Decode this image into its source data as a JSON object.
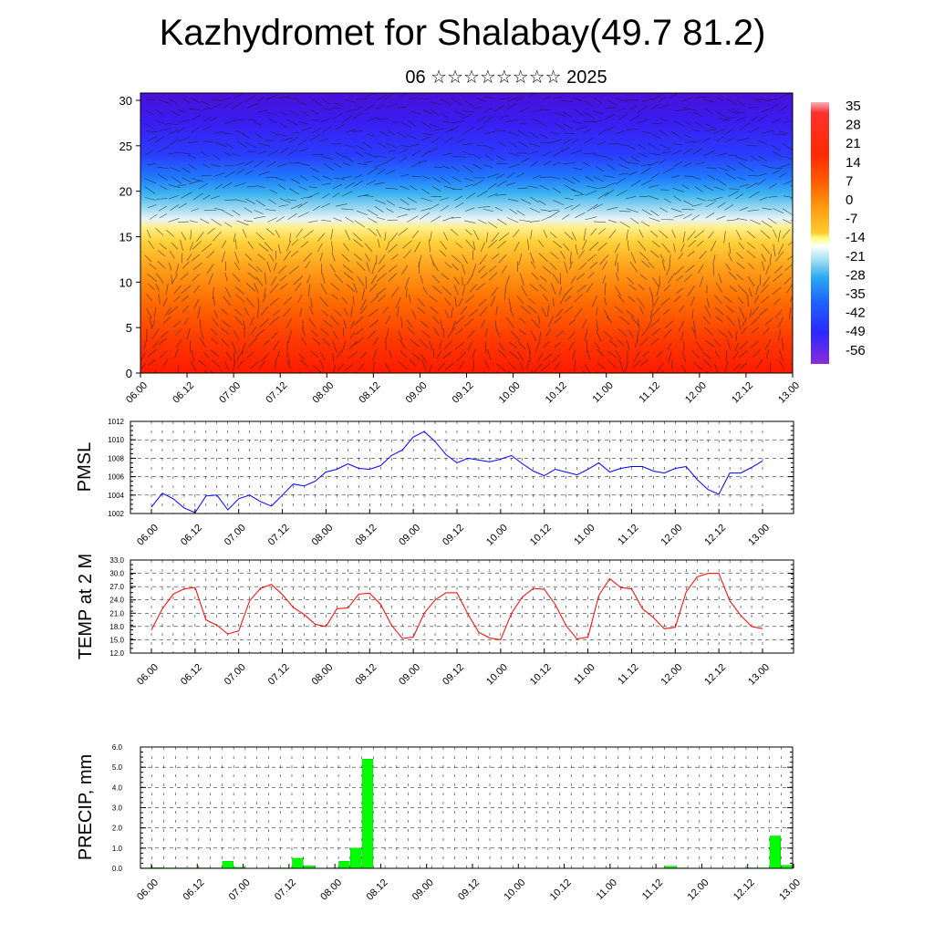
{
  "header": {
    "title": "Kazhydromet for Shalabay(49.7 81.2)",
    "subtitle": "06 ☆☆☆☆☆☆☆☆ 2025"
  },
  "time_labels": [
    "06.00",
    "06.12",
    "07.00",
    "07.12",
    "08.00",
    "08.12",
    "09.00",
    "09.12",
    "10.00",
    "10.12",
    "11.00",
    "11.12",
    "12.00",
    "12.12",
    "13.00"
  ],
  "colors": {
    "pmsl_line": "#0000ff",
    "temp_line": "#ff0000",
    "precip_bar": "#00ff00",
    "precip_bar_edge": "#00cc00",
    "grid": "#000000"
  },
  "chart_data": [
    {
      "type": "heatmap",
      "title": "",
      "x_labels": [
        "06.00",
        "06.12",
        "07.00",
        "07.12",
        "08.00",
        "08.12",
        "09.00",
        "09.12",
        "10.00",
        "10.12",
        "11.00",
        "11.12",
        "12.00",
        "12.12",
        "13.00"
      ],
      "yticks": [
        0,
        5,
        10,
        15,
        20,
        25,
        30
      ],
      "ylim": [
        0,
        30.8
      ],
      "colorbar_labels": [
        "35",
        "28",
        "21",
        "14",
        "7",
        "0",
        "-7",
        "-14",
        "-21",
        "-28",
        "-35",
        "-42",
        "-49",
        "-56"
      ],
      "colorbar_range": [
        -63,
        42
      ],
      "overlay": "wind streamlines"
    },
    {
      "type": "line",
      "ylabel": "PMSL",
      "yticks": [
        "1002",
        "1004",
        "1006",
        "1008",
        "1010",
        "1012"
      ],
      "ylim": [
        1002,
        1012
      ],
      "x": [
        0,
        0.25,
        0.5,
        0.75,
        1,
        1.25,
        1.5,
        1.75,
        2,
        2.25,
        2.5,
        2.75,
        3,
        3.25,
        3.5,
        3.75,
        4,
        4.25,
        4.5,
        4.75,
        5,
        5.25,
        5.5,
        5.75,
        6,
        6.25,
        6.5,
        6.75,
        7,
        7.25,
        7.5,
        7.75,
        8,
        8.25,
        8.5,
        8.75,
        9,
        9.25,
        9.5,
        9.75,
        10,
        10.25,
        10.5,
        10.75,
        11,
        11.25,
        11.5,
        11.75,
        12,
        12.25,
        12.5,
        12.75,
        13,
        13.25,
        13.5,
        13.75,
        14
      ],
      "values": [
        1002.7,
        1004.2,
        1003.6,
        1002.6,
        1002.1,
        1003.9,
        1004,
        1002.4,
        1003.6,
        1004,
        1003.3,
        1002.8,
        1004,
        1005.2,
        1005,
        1005.5,
        1006.5,
        1006.8,
        1007.4,
        1006.9,
        1006.8,
        1007.2,
        1008.3,
        1008.9,
        1010.3,
        1010.9,
        1009.8,
        1008.4,
        1007.5,
        1008,
        1007.8,
        1007.6,
        1007.9,
        1008.3,
        1007.4,
        1006.6,
        1006.1,
        1006.8,
        1006.5,
        1006.2,
        1006.8,
        1007.5,
        1006.5,
        1006.9,
        1007.1,
        1007.1,
        1006.6,
        1006.4,
        1006.9,
        1007.1,
        1005.7,
        1004.6,
        1004.1,
        1006.4,
        1006.4,
        1007,
        1007.7
      ]
    },
    {
      "type": "line",
      "ylabel": "TEMP at 2 M",
      "yticks": [
        "12.0",
        "15.0",
        "18.0",
        "21.0",
        "24.0",
        "27.0",
        "30.0",
        "33.0"
      ],
      "ylim": [
        12,
        33
      ],
      "x": [
        0,
        0.25,
        0.5,
        0.75,
        1,
        1.25,
        1.5,
        1.75,
        2,
        2.25,
        2.5,
        2.75,
        3,
        3.25,
        3.5,
        3.75,
        4,
        4.25,
        4.5,
        4.75,
        5,
        5.25,
        5.5,
        5.75,
        6,
        6.25,
        6.5,
        6.75,
        7,
        7.25,
        7.5,
        7.75,
        8,
        8.25,
        8.5,
        8.75,
        9,
        9.25,
        9.5,
        9.75,
        10,
        10.25,
        10.5,
        10.75,
        11,
        11.25,
        11.5,
        11.75,
        12,
        12.25,
        12.5,
        12.75,
        13,
        13.25,
        13.5,
        13.75,
        14
      ],
      "values": [
        17.2,
        22,
        25.3,
        26.5,
        26.8,
        19.5,
        18.3,
        16.3,
        17,
        23.8,
        26.6,
        27.5,
        25.2,
        22.3,
        20.7,
        18.5,
        18,
        22,
        22.2,
        25.3,
        25.5,
        23,
        18.3,
        15.3,
        15.6,
        21,
        24,
        25.6,
        25.6,
        20.8,
        16.7,
        15.4,
        15,
        21,
        24.7,
        26.6,
        26.4,
        23,
        18.2,
        15.2,
        15.6,
        25,
        28.8,
        26.8,
        26.5,
        22,
        20,
        17.5,
        17.8,
        25.8,
        29.2,
        30,
        30,
        23.8,
        20.5,
        18,
        17.5
      ]
    },
    {
      "type": "bar",
      "ylabel": "PRECIP, mm",
      "yticks": [
        "0.0",
        "1.0",
        "2.0",
        "3.0",
        "4.0",
        "5.0",
        "6.0"
      ],
      "ylim": [
        0,
        6
      ],
      "bar_width_hours": 3,
      "x": [
        0,
        0.25,
        0.5,
        0.75,
        1,
        1.25,
        1.5,
        1.75,
        2,
        2.25,
        2.5,
        2.75,
        3,
        3.25,
        3.5,
        3.75,
        4,
        4.25,
        4.5,
        4.75,
        5,
        5.25,
        5.5,
        5.75,
        6,
        6.25,
        6.5,
        6.75,
        7,
        7.25,
        7.5,
        7.75,
        8,
        8.25,
        8.5,
        8.75,
        9,
        9.25,
        9.5,
        9.75,
        10,
        10.25,
        10.5,
        10.75,
        11,
        11.25,
        11.5,
        11.75,
        12,
        12.25,
        12.5,
        12.75,
        13,
        13.25,
        13.5,
        13.75
      ],
      "values": [
        0.02,
        0.03,
        0.02,
        0.02,
        0.02,
        0.02,
        0.02,
        0.35,
        0.05,
        0.01,
        0.01,
        0.02,
        0.02,
        0.5,
        0.12,
        0.01,
        0.02,
        0.35,
        1.0,
        5.4,
        0,
        0,
        0,
        0,
        0,
        0,
        0,
        0,
        0,
        0,
        0,
        0,
        0.01,
        0,
        0,
        0,
        0,
        0,
        0,
        0,
        0,
        0,
        0,
        0,
        0,
        0.1,
        0.02,
        0,
        0,
        0,
        0,
        0,
        0.02,
        0.02,
        1.6,
        0.15
      ]
    }
  ]
}
